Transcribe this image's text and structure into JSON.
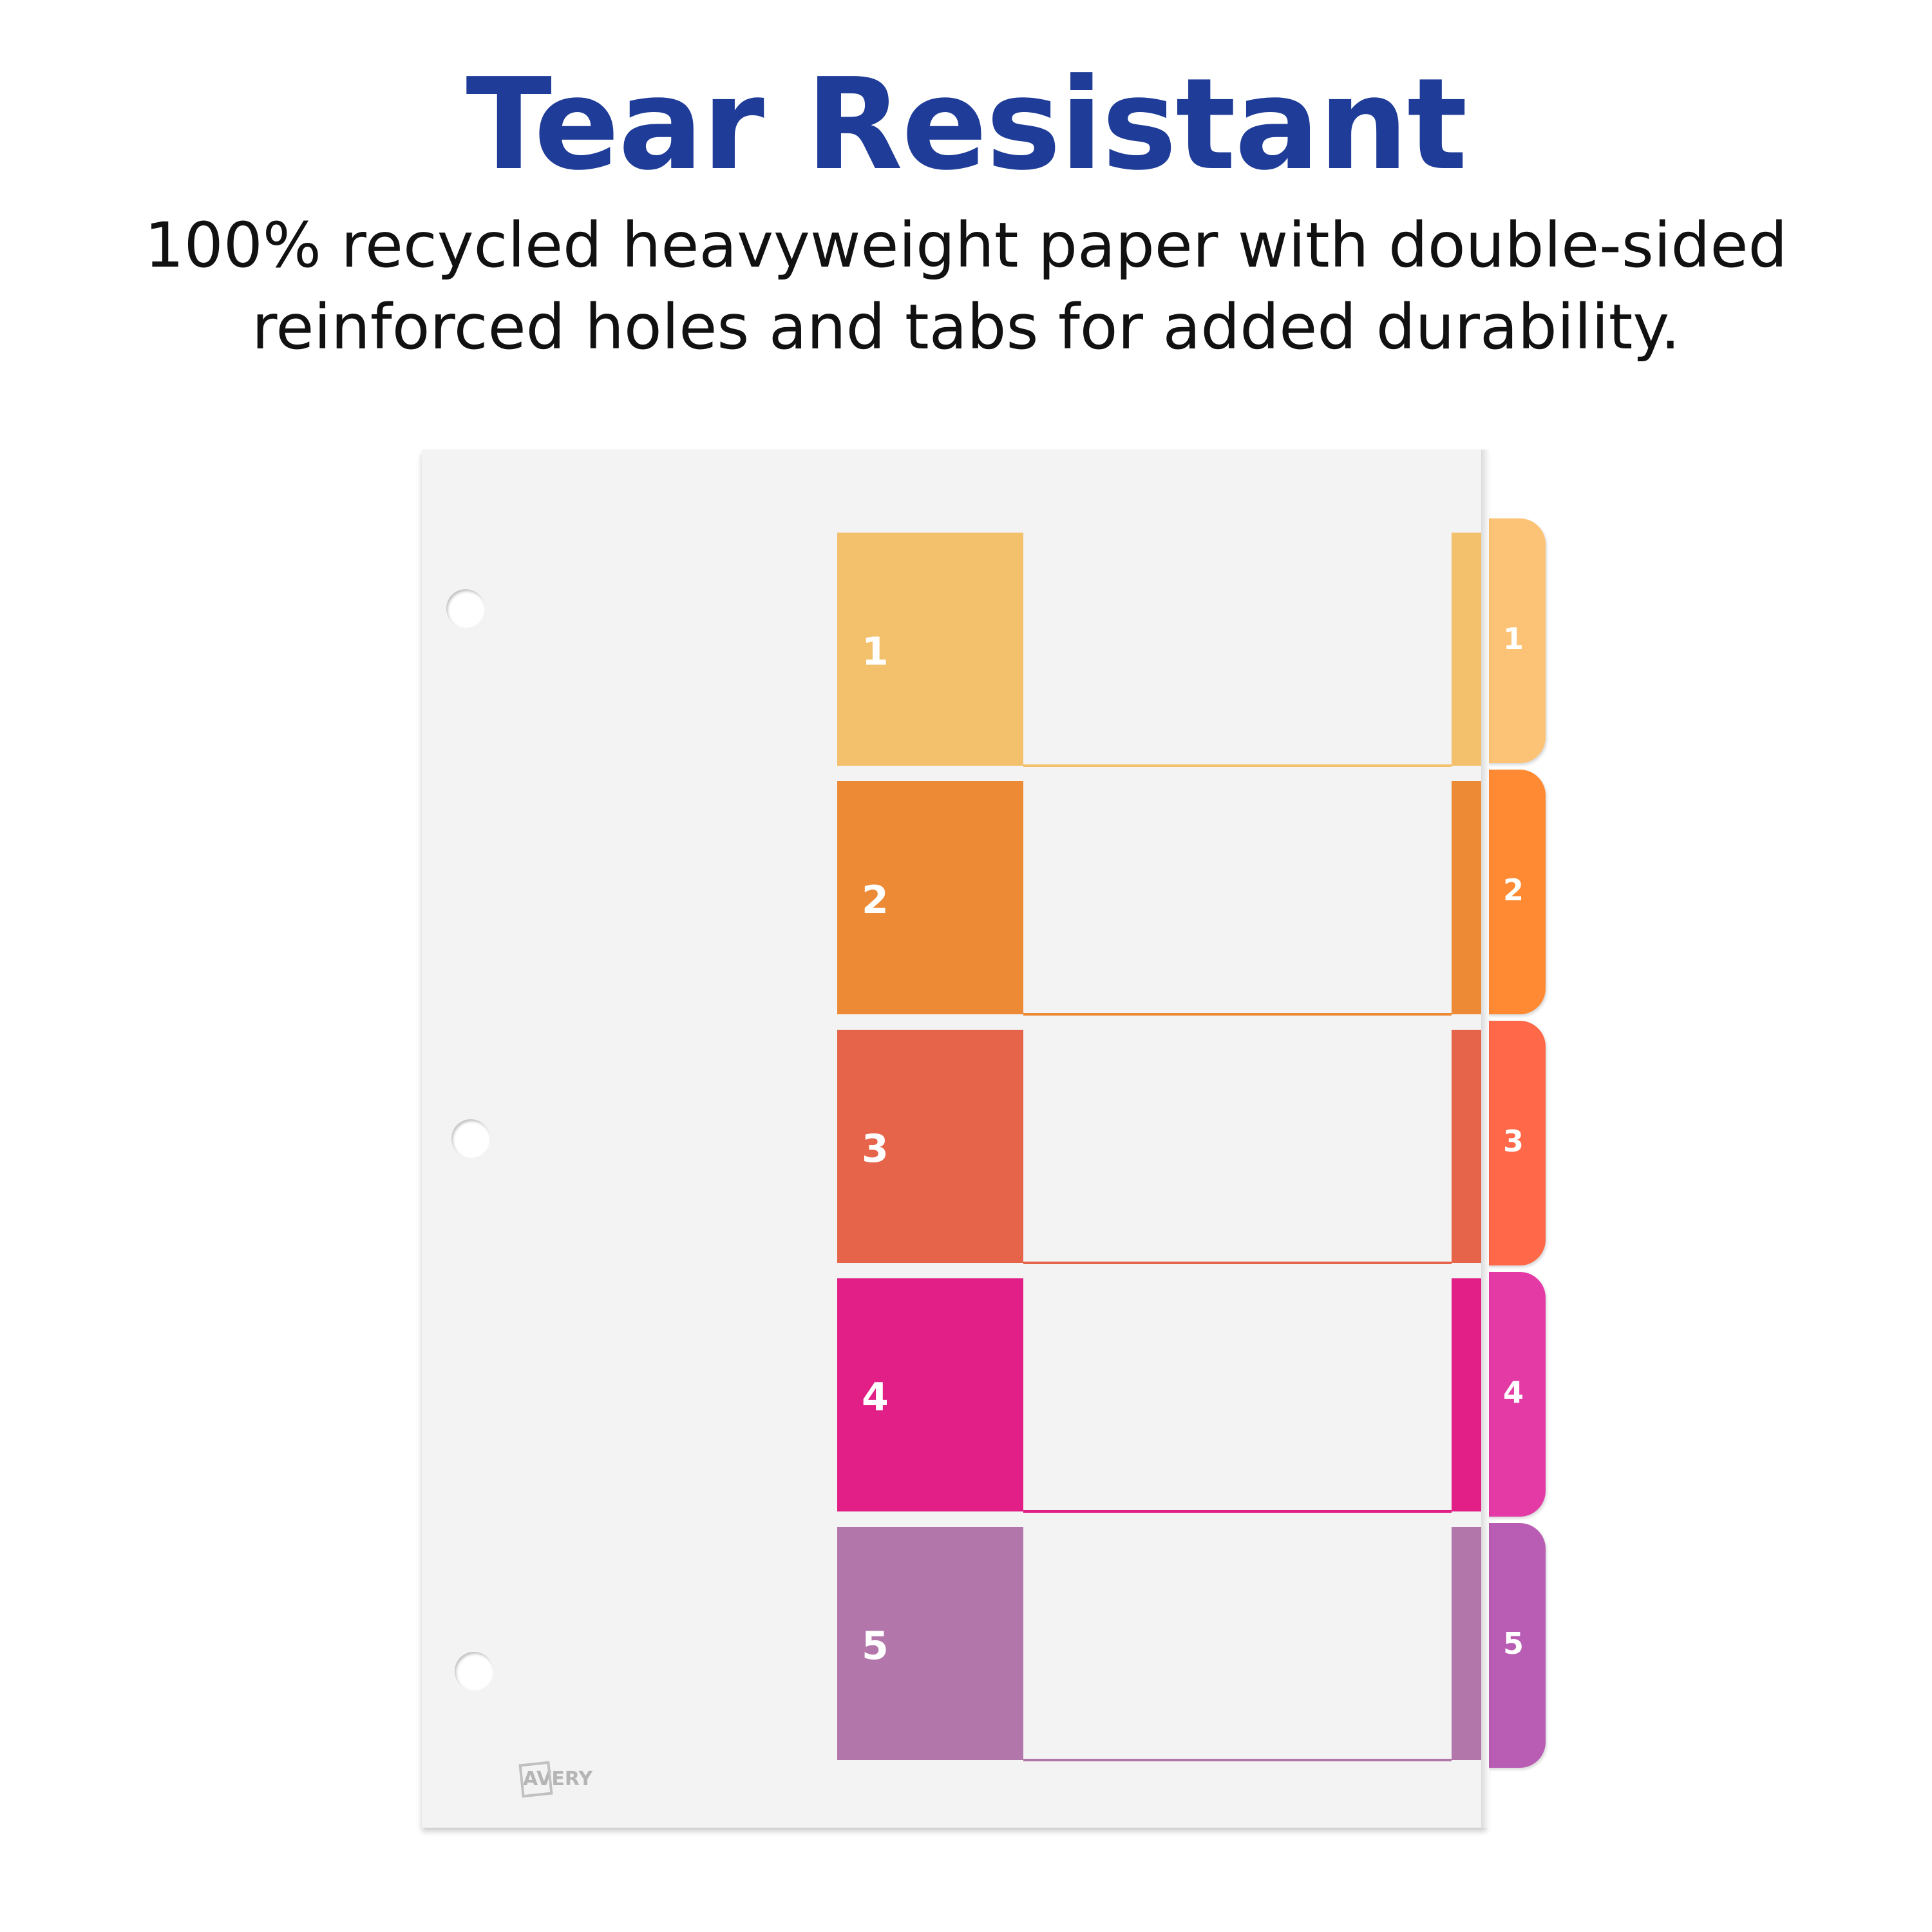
{
  "header": {
    "title": "Tear Resistant",
    "subtitle_lines": [
      "100% recycled heavyweight paper with double-sided",
      "reinforced holes and tabs for added durability."
    ]
  },
  "logo": "AVERY",
  "tabs": [
    {
      "label": "1",
      "color": "#f3c06c",
      "tab_color": "#fcc275"
    },
    {
      "label": "2",
      "color": "#ec8a35",
      "tab_color": "#ff8a33"
    },
    {
      "label": "3",
      "color": "#e66449",
      "tab_color": "#ff6848"
    },
    {
      "label": "4",
      "color": "#e11f86",
      "tab_color": "#e43aa6"
    },
    {
      "label": "5",
      "color": "#b376ab",
      "tab_color": "#b85db3"
    }
  ]
}
